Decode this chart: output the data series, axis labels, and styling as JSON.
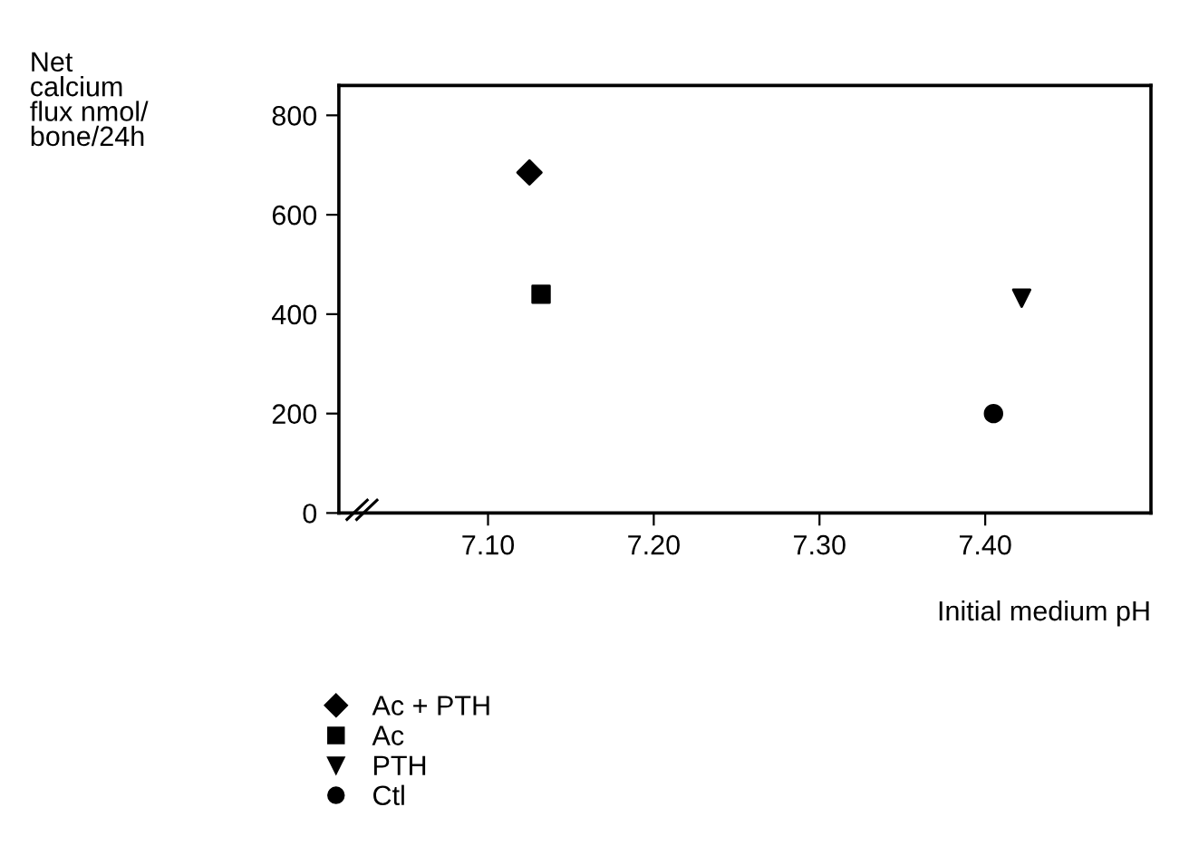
{
  "chart_data": {
    "type": "scatter",
    "xlabel": "Initial medium pH",
    "ylabel": "Net\ncalcium\nflux nmol/\nbone/24h",
    "series": [
      {
        "name": "Ac + PTH",
        "color": "#000000",
        "marker": "diamond",
        "x": [
          7.125
        ],
        "values": [
          685
        ]
      },
      {
        "name": "Ac",
        "color": "#000000",
        "marker": "square",
        "x": [
          7.132
        ],
        "values": [
          440
        ]
      },
      {
        "name": "PTH",
        "color": "#000000",
        "marker": "triangle",
        "x": [
          7.422
        ],
        "values": [
          432
        ]
      },
      {
        "name": "Ctl",
        "color": "#000000",
        "marker": "circle",
        "x": [
          7.405
        ],
        "values": [
          200
        ]
      }
    ],
    "xlim": [
      7.01,
      7.5
    ],
    "xticks": [
      {
        "value": 7.1,
        "label": "7.10"
      },
      {
        "value": 7.2,
        "label": "7.20"
      },
      {
        "value": 7.3,
        "label": "7.30"
      },
      {
        "value": 7.4,
        "label": "7.40"
      }
    ],
    "ylim": [
      0,
      860
    ],
    "yticks": [
      0,
      200,
      400,
      600,
      800
    ],
    "grid": false,
    "legend": "bottom left"
  }
}
